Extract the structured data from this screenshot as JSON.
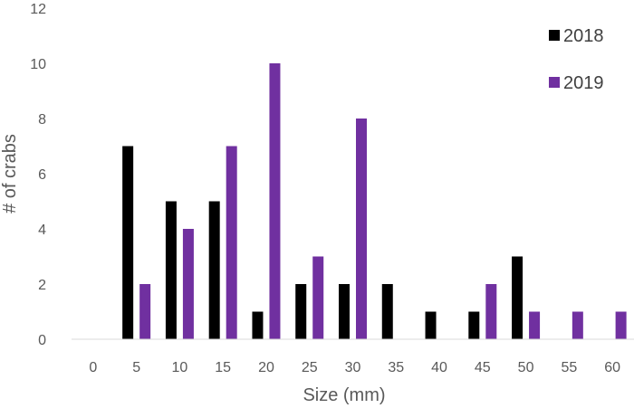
{
  "chart_data": {
    "type": "bar",
    "title": "",
    "xlabel": "Size (mm)",
    "ylabel": "# of crabs",
    "ylim": [
      0,
      12
    ],
    "yticks": [
      0,
      2,
      4,
      6,
      8,
      10,
      12
    ],
    "grid": false,
    "legend_position": "top-right",
    "categories": [
      "0",
      "5",
      "10",
      "15",
      "20",
      "25",
      "30",
      "35",
      "40",
      "45",
      "50",
      "55",
      "60"
    ],
    "series": [
      {
        "name": "2018",
        "color": "#000000",
        "values": [
          0,
          7,
          5,
          5,
          1,
          2,
          2,
          2,
          1,
          1,
          3,
          0,
          0
        ]
      },
      {
        "name": "2019",
        "color": "#7030A0",
        "values": [
          0,
          2,
          4,
          7,
          10,
          3,
          8,
          0,
          0,
          2,
          1,
          1,
          1
        ]
      }
    ]
  }
}
